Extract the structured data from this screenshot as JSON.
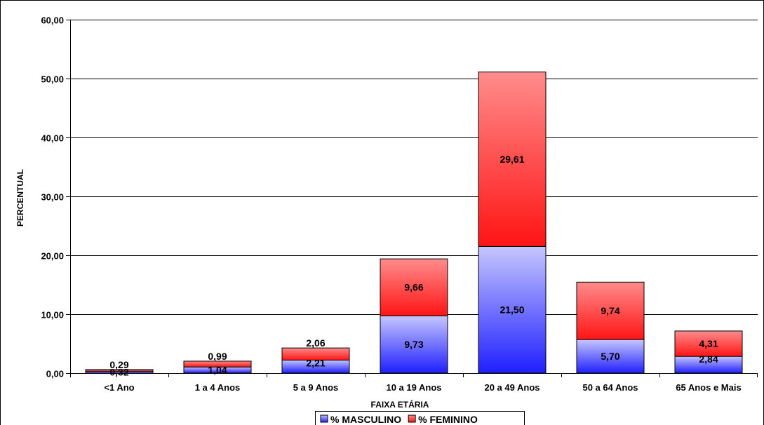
{
  "chart_data": {
    "type": "bar",
    "stacked": true,
    "title": "",
    "xlabel": "FAIXA ETÁRIA",
    "ylabel": "PERCENTUAL",
    "ylim": [
      0,
      60
    ],
    "y_ticks": [
      0,
      10,
      20,
      30,
      40,
      50,
      60
    ],
    "y_tick_labels": [
      "0,00",
      "10,00",
      "20,00",
      "30,00",
      "40,00",
      "50,00",
      "60,00"
    ],
    "grid": true,
    "legend_position": "bottom",
    "categories": [
      "<1 Ano",
      "1 a 4 Anos",
      "5 a 9 Anos",
      "10 a 19 Anos",
      "20 a 49 Anos",
      "50 a 64 Anos",
      "65 Anos e Mais"
    ],
    "series": [
      {
        "name": "% MASCULINO",
        "values": [
          0.32,
          1.04,
          2.21,
          9.73,
          21.5,
          5.7,
          2.84
        ],
        "labels": [
          "0,32",
          "1,04",
          "2,21",
          "9,73",
          "21,50",
          "5,70",
          "2,84"
        ],
        "color_top": "#c6c6ff",
        "color_bottom": "#1f1fff"
      },
      {
        "name": "% FEMININO",
        "values": [
          0.29,
          0.99,
          2.06,
          9.66,
          29.61,
          9.74,
          4.31
        ],
        "labels": [
          "0,29",
          "0,99",
          "2,06",
          "9,66",
          "29,61",
          "9,74",
          "4,31"
        ],
        "color_top": "#ff8c8c",
        "color_bottom": "#ff1414"
      }
    ]
  }
}
